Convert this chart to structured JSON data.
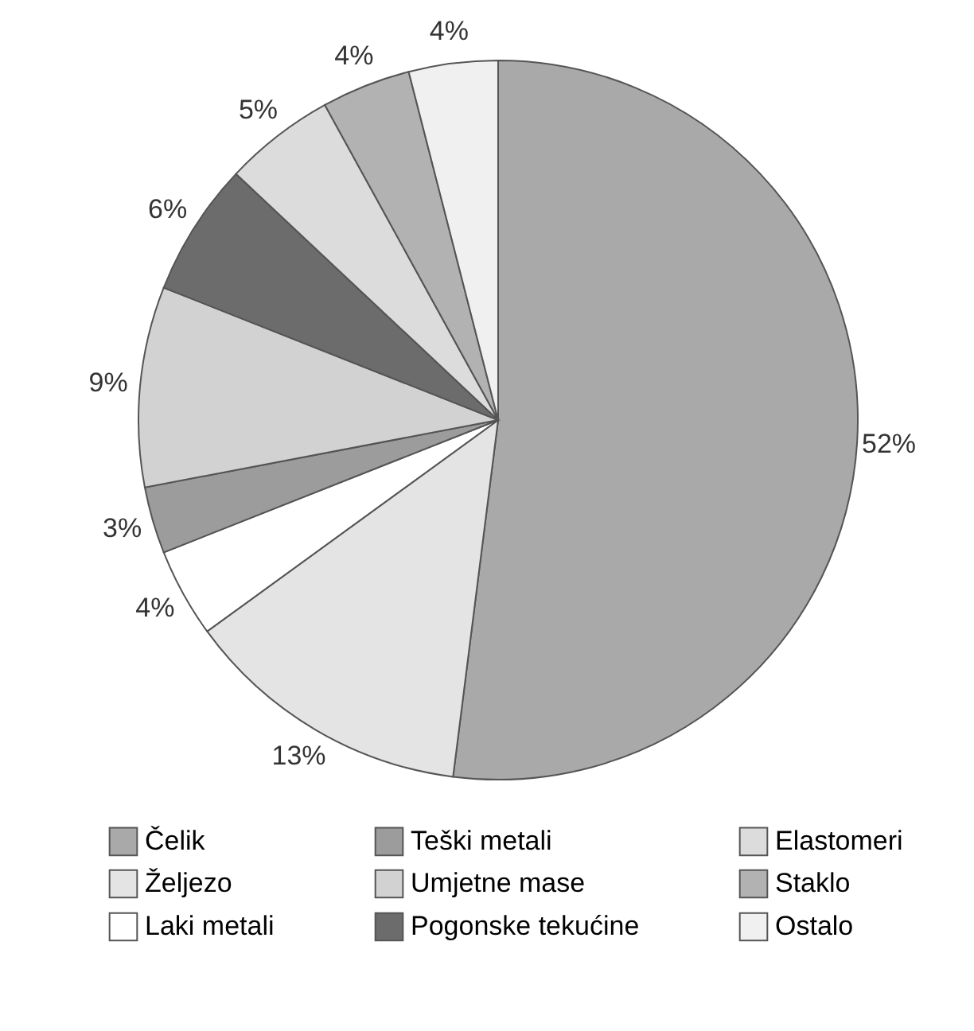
{
  "chart_data": {
    "type": "pie",
    "categories": [
      "Čelik",
      "Željezo",
      "Laki metali",
      "Teški metali",
      "Umjetne mase",
      "Pogonske tekućine",
      "Elastomeri",
      "Staklo",
      "Ostalo"
    ],
    "values": [
      52,
      13,
      4,
      3,
      9,
      6,
      5,
      4,
      4
    ],
    "value_labels": [
      "52%",
      "13%",
      "4%",
      "3%",
      "9%",
      "6%",
      "5%",
      "4%",
      "4%"
    ],
    "colors": [
      "#a9a9a9",
      "#e4e4e4",
      "#ffffff",
      "#9c9c9c",
      "#d2d2d2",
      "#6c6c6c",
      "#dcdcdc",
      "#b2b2b2",
      "#f0f0f0"
    ],
    "legend": "bottom"
  }
}
